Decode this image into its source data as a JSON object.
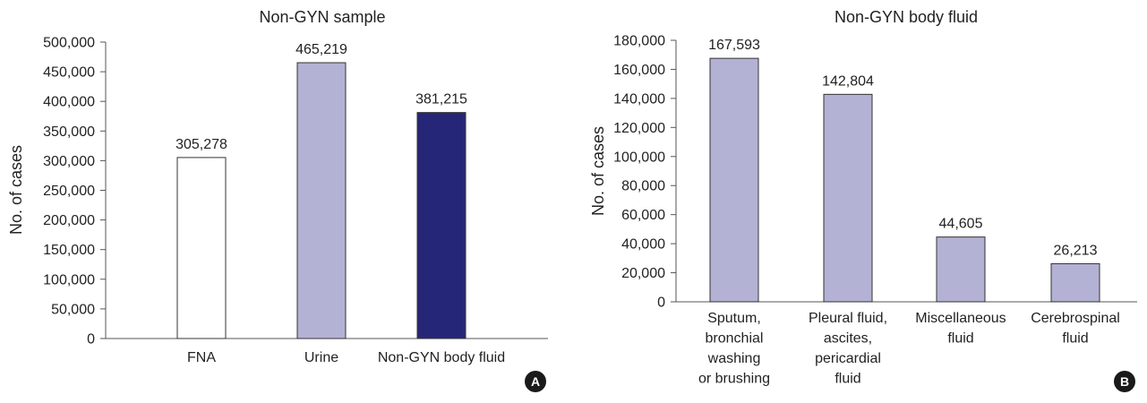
{
  "chart_data": [
    {
      "panel": "A",
      "type": "bar",
      "title": "Non-GYN sample",
      "ylabel": "No. of cases",
      "xlabel": "",
      "categories": [
        [
          "FNA"
        ],
        [
          "Urine"
        ],
        [
          "Non-GYN body fluid"
        ]
      ],
      "values": [
        305278,
        465219,
        381215
      ],
      "data_labels": [
        "305,278",
        "465,219",
        "381,215"
      ],
      "colors": [
        "#ffffff",
        "#b3b1d4",
        "#262678"
      ],
      "ylim": [
        0,
        500000
      ],
      "yticks": [
        0,
        50000,
        100000,
        150000,
        200000,
        250000,
        300000,
        350000,
        400000,
        450000,
        500000
      ],
      "ytick_labels": [
        "0",
        "50,000",
        "100,000",
        "150,000",
        "200,000",
        "250,000",
        "300,000",
        "350,000",
        "400,000",
        "450,000",
        "500,000"
      ],
      "grid": false,
      "legend": "none",
      "badge": "A"
    },
    {
      "panel": "B",
      "type": "bar",
      "title": "Non-GYN body fluid",
      "ylabel": "No. of cases",
      "xlabel": "",
      "categories": [
        [
          "Sputum,",
          "bronchial",
          "washing",
          "or brushing"
        ],
        [
          "Pleural fluid,",
          "ascites,",
          "pericardial",
          "fluid"
        ],
        [
          "Miscellaneous",
          "fluid"
        ],
        [
          "Cerebrospinal",
          "fluid"
        ]
      ],
      "values": [
        167593,
        142804,
        44605,
        26213
      ],
      "data_labels": [
        "167,593",
        "142,804",
        "44,605",
        "26,213"
      ],
      "colors": [
        "#b3b1d4",
        "#b3b1d4",
        "#b3b1d4",
        "#b3b1d4"
      ],
      "ylim": [
        0,
        180000
      ],
      "yticks": [
        0,
        20000,
        40000,
        60000,
        80000,
        100000,
        120000,
        140000,
        160000,
        180000
      ],
      "ytick_labels": [
        "0",
        "20,000",
        "40,000",
        "60,000",
        "80,000",
        "100,000",
        "120,000",
        "140,000",
        "160,000",
        "180,000"
      ],
      "grid": false,
      "legend": "none",
      "badge": "B"
    }
  ]
}
